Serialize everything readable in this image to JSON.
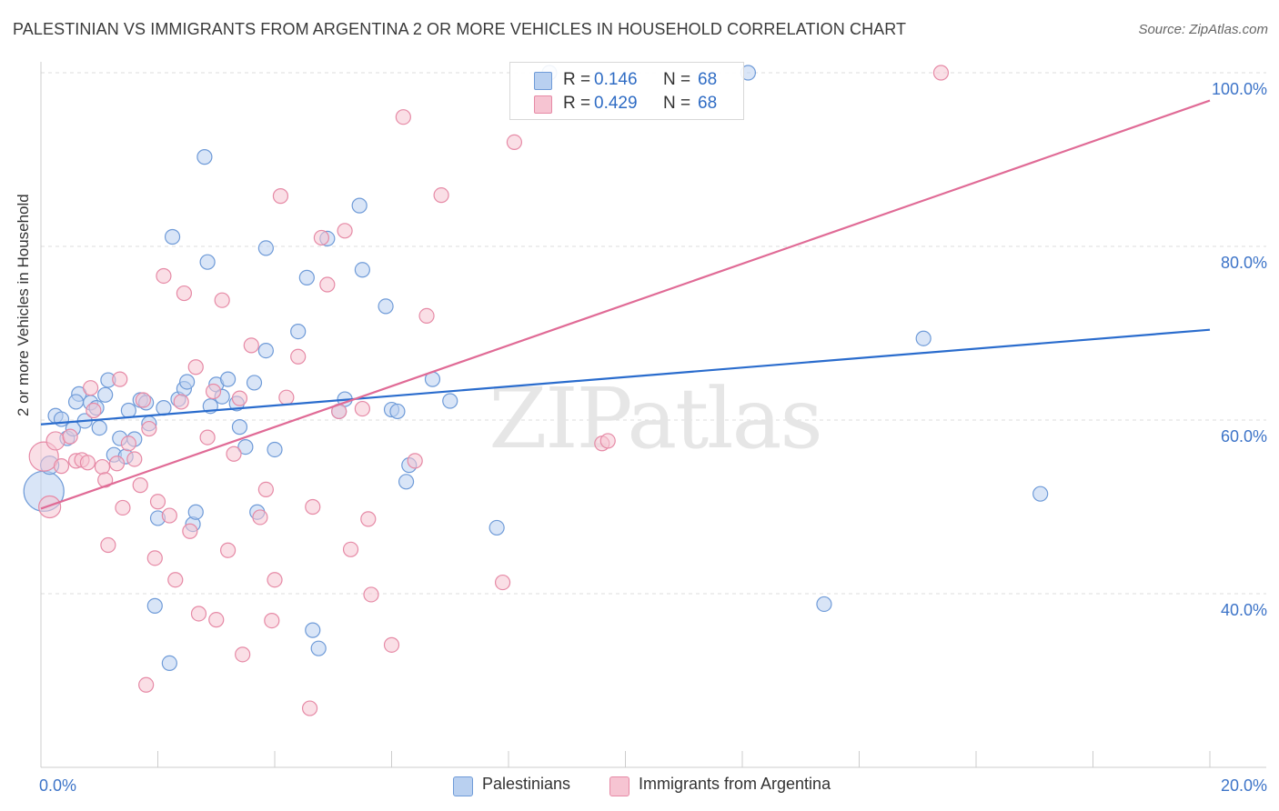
{
  "title": "PALESTINIAN VS IMMIGRANTS FROM ARGENTINA 2 OR MORE VEHICLES IN HOUSEHOLD CORRELATION CHART",
  "source": "Source: ZipAtlas.com",
  "watermark": "ZIPatlas",
  "colors": {
    "blue_fill": "#b9d0f0",
    "blue_stroke": "#6f9bd8",
    "blue_line": "#2a6ccd",
    "pink_fill": "#f6c4d2",
    "pink_stroke": "#e68aa6",
    "pink_line": "#e06b96",
    "tick_label": "#3d74c8",
    "grid": "#dedede"
  },
  "legend_top": {
    "rows": [
      {
        "r_label": "R =",
        "r_value": "0.146",
        "n_label": "N =",
        "n_value": "68"
      },
      {
        "r_label": "R =",
        "r_value": "0.429",
        "n_label": "N =",
        "n_value": "68"
      }
    ]
  },
  "legend_bottom": [
    "Palestinians",
    "Immigrants from Argentina"
  ],
  "chart_data": {
    "type": "scatter",
    "title": "PALESTINIAN VS IMMIGRANTS FROM ARGENTINA 2 OR MORE VEHICLES IN HOUSEHOLD CORRELATION CHART",
    "xlabel": "",
    "ylabel": "2 or more Vehicles in Household",
    "xlim": [
      0,
      20
    ],
    "ylim": [
      20,
      100
    ],
    "x_tick_labels": [
      "0.0%",
      "20.0%"
    ],
    "y_ticks": [
      40,
      60,
      80,
      100
    ],
    "y_tick_labels": [
      "40.0%",
      "60.0%",
      "80.0%",
      "100.0%"
    ],
    "grid": true,
    "legend_position": "top-center",
    "series": [
      {
        "name": "Palestinians",
        "trend": {
          "x": [
            0,
            20
          ],
          "y": [
            59.5,
            70.4
          ]
        },
        "points": [
          [
            0.05,
            51.8,
            22
          ],
          [
            0.15,
            54.8,
            10
          ],
          [
            0.25,
            60.5,
            8
          ],
          [
            0.35,
            60.1,
            8
          ],
          [
            0.45,
            57.9,
            8
          ],
          [
            0.55,
            59.0,
            8
          ],
          [
            0.65,
            63.0,
            8
          ],
          [
            0.75,
            59.9,
            8
          ],
          [
            0.85,
            62.0,
            8
          ],
          [
            0.95,
            61.4,
            8
          ],
          [
            1.0,
            59.1,
            8
          ],
          [
            1.1,
            62.9,
            8
          ],
          [
            1.15,
            64.6,
            8
          ],
          [
            1.25,
            56.0,
            8
          ],
          [
            1.35,
            57.9,
            8
          ],
          [
            1.45,
            55.8,
            8
          ],
          [
            1.5,
            61.1,
            8
          ],
          [
            1.6,
            57.8,
            8
          ],
          [
            1.7,
            62.3,
            8
          ],
          [
            1.8,
            62.0,
            8
          ],
          [
            1.85,
            59.6,
            8
          ],
          [
            1.95,
            38.6,
            8
          ],
          [
            2.0,
            48.7,
            8
          ],
          [
            2.1,
            61.4,
            8
          ],
          [
            2.2,
            32.0,
            8
          ],
          [
            2.25,
            81.1,
            8
          ],
          [
            2.35,
            62.4,
            8
          ],
          [
            2.45,
            63.6,
            8
          ],
          [
            2.5,
            64.4,
            8
          ],
          [
            2.6,
            48.0,
            8
          ],
          [
            2.65,
            49.4,
            8
          ],
          [
            2.8,
            90.3,
            8
          ],
          [
            2.85,
            78.2,
            8
          ],
          [
            2.9,
            61.6,
            8
          ],
          [
            3.0,
            64.1,
            8
          ],
          [
            3.1,
            62.7,
            8
          ],
          [
            3.2,
            64.7,
            8
          ],
          [
            3.35,
            61.9,
            8
          ],
          [
            3.4,
            59.2,
            8
          ],
          [
            3.5,
            56.9,
            8
          ],
          [
            3.65,
            64.3,
            8
          ],
          [
            3.7,
            49.4,
            8
          ],
          [
            3.85,
            68.0,
            8
          ],
          [
            3.85,
            79.8,
            8
          ],
          [
            4.0,
            56.6,
            8
          ],
          [
            4.4,
            70.2,
            8
          ],
          [
            4.55,
            76.4,
            8
          ],
          [
            4.65,
            35.8,
            8
          ],
          [
            4.75,
            33.7,
            8
          ],
          [
            4.9,
            80.9,
            8
          ],
          [
            5.1,
            61.0,
            8
          ],
          [
            5.2,
            62.4,
            8
          ],
          [
            5.45,
            84.7,
            8
          ],
          [
            5.5,
            77.3,
            8
          ],
          [
            5.9,
            73.1,
            8
          ],
          [
            6.0,
            61.2,
            8
          ],
          [
            6.1,
            61.0,
            8
          ],
          [
            6.25,
            52.9,
            8
          ],
          [
            6.3,
            54.8,
            8
          ],
          [
            6.7,
            64.7,
            8
          ],
          [
            7.0,
            62.2,
            8
          ],
          [
            7.8,
            47.6,
            8
          ],
          [
            8.7,
            100.0,
            8
          ],
          [
            12.1,
            100.0,
            8
          ],
          [
            13.4,
            38.8,
            8
          ],
          [
            15.1,
            69.4,
            8
          ],
          [
            17.1,
            51.5,
            8
          ],
          [
            0.6,
            62.1,
            8
          ]
        ]
      },
      {
        "name": "Immigrants from Argentina",
        "trend": {
          "x": [
            0,
            20
          ],
          "y": [
            49.8,
            96.8
          ]
        },
        "points": [
          [
            0.05,
            55.8,
            16
          ],
          [
            0.15,
            50.0,
            12
          ],
          [
            0.25,
            57.6,
            10
          ],
          [
            0.35,
            54.7,
            8
          ],
          [
            0.5,
            58.1,
            8
          ],
          [
            0.6,
            55.3,
            8
          ],
          [
            0.7,
            55.4,
            8
          ],
          [
            0.8,
            55.1,
            8
          ],
          [
            0.85,
            63.7,
            8
          ],
          [
            0.9,
            61.1,
            8
          ],
          [
            1.05,
            54.6,
            8
          ],
          [
            1.1,
            53.1,
            8
          ],
          [
            1.15,
            45.6,
            8
          ],
          [
            1.3,
            55.0,
            8
          ],
          [
            1.35,
            64.7,
            8
          ],
          [
            1.4,
            49.9,
            8
          ],
          [
            1.5,
            57.3,
            8
          ],
          [
            1.6,
            55.5,
            8
          ],
          [
            1.7,
            52.5,
            8
          ],
          [
            1.75,
            62.3,
            8
          ],
          [
            1.8,
            29.5,
            8
          ],
          [
            1.95,
            44.1,
            8
          ],
          [
            2.0,
            50.6,
            8
          ],
          [
            2.1,
            76.6,
            8
          ],
          [
            2.2,
            49.0,
            8
          ],
          [
            2.3,
            41.6,
            8
          ],
          [
            2.4,
            62.1,
            8
          ],
          [
            2.45,
            74.6,
            8
          ],
          [
            2.55,
            47.2,
            8
          ],
          [
            2.65,
            66.1,
            8
          ],
          [
            2.7,
            37.7,
            8
          ],
          [
            2.85,
            58.0,
            8
          ],
          [
            2.95,
            63.3,
            8
          ],
          [
            3.0,
            37.0,
            8
          ],
          [
            3.1,
            73.8,
            8
          ],
          [
            3.2,
            45.0,
            8
          ],
          [
            3.3,
            56.1,
            8
          ],
          [
            3.4,
            62.5,
            8
          ],
          [
            3.45,
            33.0,
            8
          ],
          [
            3.6,
            68.6,
            8
          ],
          [
            3.75,
            48.8,
            8
          ],
          [
            3.85,
            52.0,
            8
          ],
          [
            3.95,
            36.9,
            8
          ],
          [
            4.0,
            41.6,
            8
          ],
          [
            4.1,
            85.8,
            8
          ],
          [
            4.2,
            62.6,
            8
          ],
          [
            4.4,
            67.3,
            8
          ],
          [
            4.6,
            26.8,
            8
          ],
          [
            4.65,
            50.0,
            8
          ],
          [
            4.8,
            81.0,
            8
          ],
          [
            4.9,
            75.6,
            8
          ],
          [
            5.1,
            61.0,
            8
          ],
          [
            5.2,
            81.8,
            8
          ],
          [
            5.3,
            45.1,
            8
          ],
          [
            5.5,
            61.3,
            8
          ],
          [
            5.6,
            48.6,
            8
          ],
          [
            5.65,
            39.9,
            8
          ],
          [
            6.0,
            34.1,
            8
          ],
          [
            6.2,
            94.9,
            8
          ],
          [
            6.4,
            55.3,
            8
          ],
          [
            6.6,
            72.0,
            8
          ],
          [
            6.85,
            85.9,
            8
          ],
          [
            7.9,
            41.3,
            8
          ],
          [
            8.1,
            92.0,
            8
          ],
          [
            9.6,
            57.3,
            8
          ],
          [
            9.7,
            57.6,
            8
          ],
          [
            15.4,
            100.0,
            8
          ],
          [
            1.85,
            59.0,
            8
          ]
        ]
      }
    ]
  }
}
